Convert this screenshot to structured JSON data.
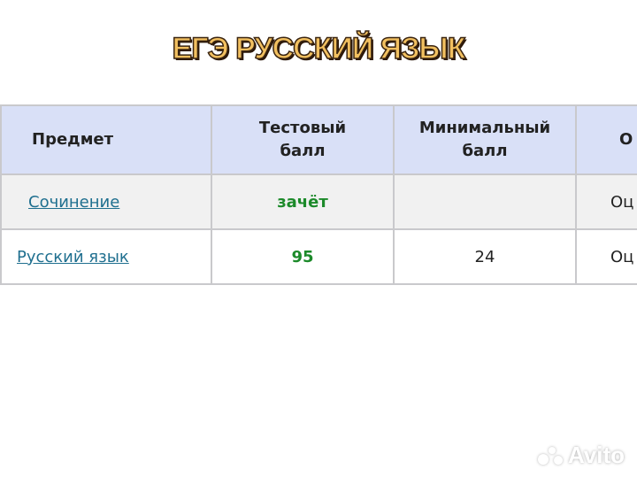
{
  "title": "ЕГЭ РУССКИЙ ЯЗЫК",
  "table": {
    "headers": [
      "Предмет",
      "Тестовый балл",
      "Минимальный балл",
      "О"
    ],
    "rows": [
      {
        "subject": "Сочинение",
        "score": "зачёт",
        "min": "",
        "extra": "Оц"
      },
      {
        "subject": "Русский язык",
        "score": "95",
        "min": "24",
        "extra": "Оц"
      }
    ]
  },
  "watermark": "Avito",
  "colors": {
    "header_bg": "#d9e0f7",
    "score_green": "#1c8a2a",
    "link": "#1f6f8f"
  }
}
